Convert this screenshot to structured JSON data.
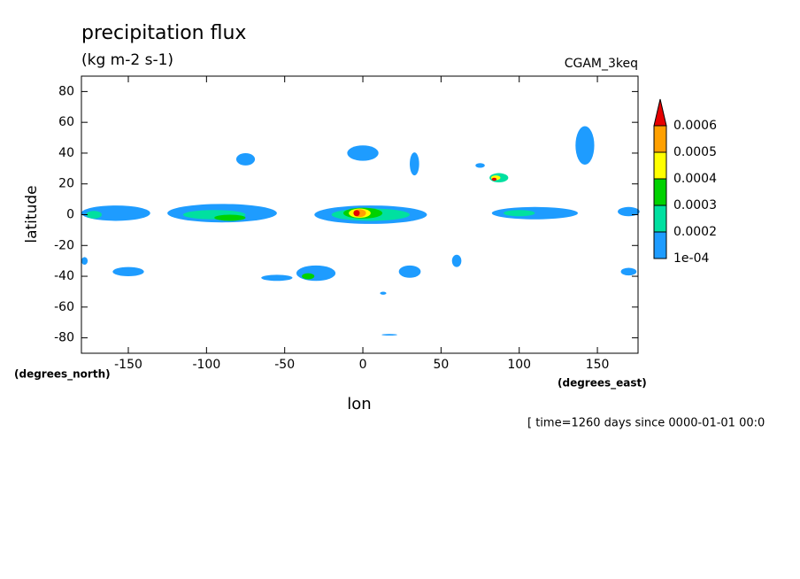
{
  "chart_data": {
    "type": "contour",
    "title": "precipitation flux",
    "subtitle": "(kg m-2 s-1)",
    "source": "CGAM_3keq",
    "y_label": "latitude",
    "y_unit": "(degrees_north)",
    "x_label": "lon",
    "x_unit": "(degrees_east)",
    "annotation": "[ time=1260 days since 0000-01-01 00:0",
    "xlim": [
      -180,
      176
    ],
    "ylim": [
      -90,
      90
    ],
    "xticks": [
      -150,
      -100,
      -50,
      0,
      50,
      100,
      150
    ],
    "yticks": [
      -80,
      -60,
      -40,
      -20,
      0,
      20,
      40,
      60,
      80
    ],
    "levels": [
      {
        "value": 0.0001,
        "label": "1e-04"
      },
      0.0002,
      0.0003,
      0.0004,
      0.0005,
      0.0006
    ],
    "colors": [
      "#1e9cff",
      "#00e0a0",
      "#00d200",
      "#ffff00",
      "#ffa000",
      "#e60000"
    ],
    "features": [
      {
        "lon": -158,
        "lat": 1,
        "width": 44,
        "height": 10,
        "value": 0.0001
      },
      {
        "lon": -172,
        "lat": 0,
        "width": 10,
        "height": 5,
        "value": 0.0002
      },
      {
        "lon": -90,
        "lat": 1,
        "width": 70,
        "height": 12,
        "value": 0.0001
      },
      {
        "lon": -95,
        "lat": 0,
        "width": 40,
        "height": 6,
        "value": 0.0002
      },
      {
        "lon": -85,
        "lat": -2,
        "width": 20,
        "height": 4,
        "value": 0.0003
      },
      {
        "lon": 5,
        "lat": 0,
        "width": 72,
        "height": 12,
        "value": 0.0001
      },
      {
        "lon": 5,
        "lat": 0,
        "width": 50,
        "height": 8,
        "value": 0.0002
      },
      {
        "lon": 0,
        "lat": 1,
        "width": 25,
        "height": 7,
        "value": 0.0003
      },
      {
        "lon": -2,
        "lat": 1,
        "width": 14,
        "height": 6,
        "value": 0.0004
      },
      {
        "lon": -2,
        "lat": 1,
        "width": 8,
        "height": 5,
        "value": 0.0005
      },
      {
        "lon": -4,
        "lat": 1,
        "width": 4,
        "height": 4,
        "value": 0.0006
      },
      {
        "lon": 110,
        "lat": 1,
        "width": 55,
        "height": 8,
        "value": 0.0001
      },
      {
        "lon": 100,
        "lat": 1,
        "width": 20,
        "height": 4,
        "value": 0.0002
      },
      {
        "lon": 170,
        "lat": 2,
        "width": 14,
        "height": 6,
        "value": 0.0001
      },
      {
        "lon": 142,
        "lat": 45,
        "width": 12,
        "height": 25,
        "value": 0.0001
      },
      {
        "lon": 87,
        "lat": 24,
        "width": 12,
        "height": 6,
        "value": 0.0002
      },
      {
        "lon": 85,
        "lat": 24,
        "width": 6,
        "height": 3,
        "value": 0.0004
      },
      {
        "lon": 84,
        "lat": 23,
        "width": 3,
        "height": 2,
        "value": 0.0006
      },
      {
        "lon": 0,
        "lat": 40,
        "width": 20,
        "height": 10,
        "value": 0.0001
      },
      {
        "lon": 33,
        "lat": 33,
        "width": 6,
        "height": 15,
        "value": 0.0001
      },
      {
        "lon": -75,
        "lat": 36,
        "width": 12,
        "height": 8,
        "value": 0.0001
      },
      {
        "lon": 75,
        "lat": 32,
        "width": 6,
        "height": 3,
        "value": 0.0001
      },
      {
        "lon": -150,
        "lat": -37,
        "width": 20,
        "height": 6,
        "value": 0.0001
      },
      {
        "lon": -30,
        "lat": -38,
        "width": 25,
        "height": 10,
        "value": 0.0001
      },
      {
        "lon": -35,
        "lat": -40,
        "width": 8,
        "height": 4,
        "value": 0.0003
      },
      {
        "lon": -55,
        "lat": -41,
        "width": 20,
        "height": 4,
        "value": 0.0001
      },
      {
        "lon": 30,
        "lat": -37,
        "width": 14,
        "height": 8,
        "value": 0.0001
      },
      {
        "lon": 60,
        "lat": -30,
        "width": 6,
        "height": 8,
        "value": 0.0001
      },
      {
        "lon": 170,
        "lat": -37,
        "width": 10,
        "height": 5,
        "value": 0.0001
      },
      {
        "lon": -178,
        "lat": -30,
        "width": 4,
        "height": 5,
        "value": 0.0001
      },
      {
        "lon": 13,
        "lat": -51,
        "width": 4,
        "height": 2,
        "value": 0.0001
      },
      {
        "lon": 17,
        "lat": -78,
        "width": 10,
        "height": 1,
        "value": 0.0001
      }
    ]
  }
}
